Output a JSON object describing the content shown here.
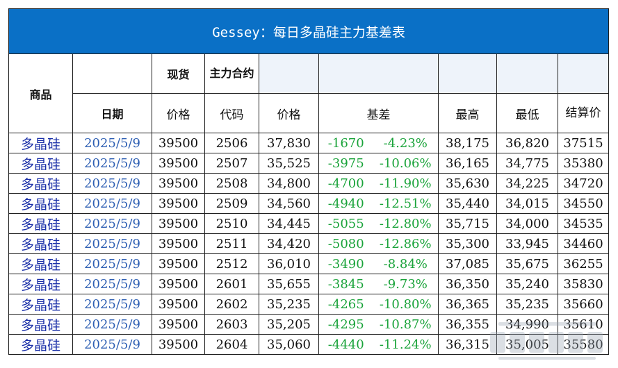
{
  "title": "Gessey：每日多晶硅主力基差表",
  "headers": {
    "product": "商品",
    "spot": "现货",
    "main_contract": "主力合约",
    "date": "日期",
    "spot_price": "价格",
    "code": "代码",
    "price": "价格",
    "basis": "基差",
    "high": "最高",
    "low": "最低",
    "settle": "结算价"
  },
  "rows": [
    {
      "product": "多晶硅",
      "date": "2025/5/9",
      "spot": "39500",
      "code": "2506",
      "price": "37,830",
      "basis": "-1670",
      "basis_pct": "-4.23%",
      "high": "38,175",
      "low": "36,820",
      "settle": "37515"
    },
    {
      "product": "多晶硅",
      "date": "2025/5/9",
      "spot": "39500",
      "code": "2507",
      "price": "35,525",
      "basis": "-3975",
      "basis_pct": "-10.06%",
      "high": "36,165",
      "low": "34,775",
      "settle": "35380"
    },
    {
      "product": "多晶硅",
      "date": "2025/5/9",
      "spot": "39500",
      "code": "2508",
      "price": "34,800",
      "basis": "-4700",
      "basis_pct": "-11.90%",
      "high": "35,630",
      "low": "34,225",
      "settle": "34720"
    },
    {
      "product": "多晶硅",
      "date": "2025/5/9",
      "spot": "39500",
      "code": "2509",
      "price": "34,560",
      "basis": "-4940",
      "basis_pct": "-12.51%",
      "high": "35,440",
      "low": "34,015",
      "settle": "34550"
    },
    {
      "product": "多晶硅",
      "date": "2025/5/9",
      "spot": "39500",
      "code": "2510",
      "price": "34,445",
      "basis": "-5055",
      "basis_pct": "-12.80%",
      "high": "35,715",
      "low": "34,000",
      "settle": "34535"
    },
    {
      "product": "多晶硅",
      "date": "2025/5/9",
      "spot": "39500",
      "code": "2511",
      "price": "34,420",
      "basis": "-5080",
      "basis_pct": "-12.86%",
      "high": "35,300",
      "low": "33,945",
      "settle": "34460"
    },
    {
      "product": "多晶硅",
      "date": "2025/5/9",
      "spot": "39500",
      "code": "2512",
      "price": "36,010",
      "basis": "-3490",
      "basis_pct": "-8.84%",
      "high": "37,085",
      "low": "35,675",
      "settle": "36255"
    },
    {
      "product": "多晶硅",
      "date": "2025/5/9",
      "spot": "39500",
      "code": "2601",
      "price": "35,655",
      "basis": "-3845",
      "basis_pct": "-9.73%",
      "high": "36,350",
      "low": "35,240",
      "settle": "35830"
    },
    {
      "product": "多晶硅",
      "date": "2025/5/9",
      "spot": "39500",
      "code": "2602",
      "price": "35,235",
      "basis": "-4265",
      "basis_pct": "-10.80%",
      "high": "36,365",
      "low": "35,235",
      "settle": "35660"
    },
    {
      "product": "多晶硅",
      "date": "2025/5/9",
      "spot": "39500",
      "code": "2603",
      "price": "35,205",
      "basis": "-4295",
      "basis_pct": "-10.87%",
      "high": "36,355",
      "low": "34,990",
      "settle": "35610"
    },
    {
      "product": "多晶硅",
      "date": "2025/5/9",
      "spot": "39500",
      "code": "2604",
      "price": "35,060",
      "basis": "-4440",
      "basis_pct": "-11.24%",
      "high": "36,315",
      "low": "35,005",
      "settle": "35580"
    }
  ],
  "colors": {
    "title_bg": "#0a70c6",
    "negative": "#1aa33a",
    "product": "#1a2fa8",
    "date": "#2e5fb3"
  }
}
